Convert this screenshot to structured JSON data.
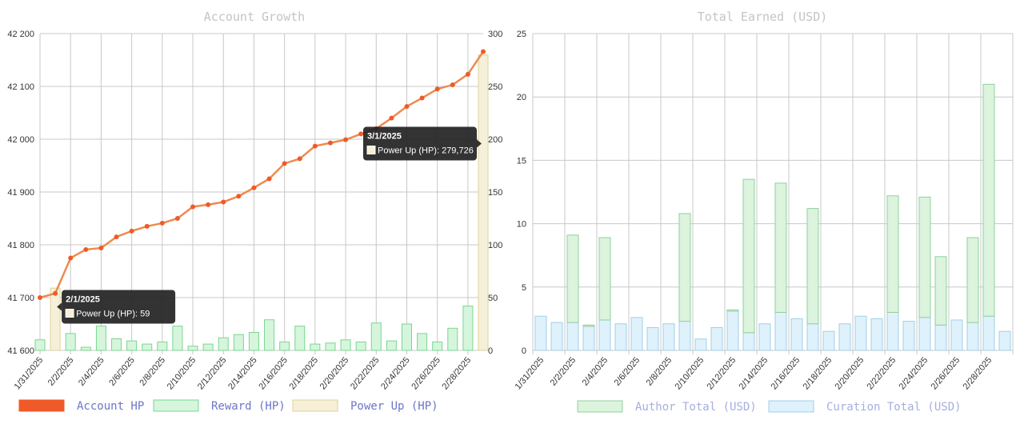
{
  "chart_data": [
    {
      "type": "bar+line",
      "title": "Account Growth",
      "x": [
        "1/31/2025",
        "2/1/2025",
        "2/2/2025",
        "2/3/2025",
        "2/4/2025",
        "2/5/2025",
        "2/6/2025",
        "2/7/2025",
        "2/8/2025",
        "2/9/2025",
        "2/10/2025",
        "2/11/2025",
        "2/12/2025",
        "2/13/2025",
        "2/14/2025",
        "2/15/2025",
        "2/16/2025",
        "2/17/2025",
        "2/18/2025",
        "2/19/2025",
        "2/20/2025",
        "2/21/2025",
        "2/22/2025",
        "2/23/2025",
        "2/24/2025",
        "2/25/2025",
        "2/26/2025",
        "2/27/2025",
        "2/28/2025",
        "3/1/2025"
      ],
      "x_tick_labels": [
        "1/31/2025",
        "2/2/2025",
        "2/4/2025",
        "2/6/2025",
        "2/8/2025",
        "2/10/2025",
        "2/12/2025",
        "2/14/2025",
        "2/16/2025",
        "2/18/2025",
        "2/20/2025",
        "2/22/2025",
        "2/24/2025",
        "2/26/2025",
        "2/28/2025"
      ],
      "y_left": {
        "lim": [
          41600,
          42200
        ],
        "ticks": [
          "41 600",
          "41 700",
          "41 800",
          "41 900",
          "42 000",
          "42 100",
          "42 200"
        ]
      },
      "y_right": {
        "lim": [
          0,
          300
        ],
        "ticks": [
          "0",
          "50",
          "100",
          "150",
          "200",
          "250",
          "300"
        ]
      },
      "series": [
        {
          "name": "Account HP",
          "axis": "left",
          "kind": "line",
          "color": "#f05a28",
          "line_color": "#ee8a50",
          "values": [
            41700,
            41708,
            41775,
            41791,
            41794,
            41815,
            41826,
            41835,
            41841,
            41850,
            41872,
            41876,
            41881,
            41892,
            41908,
            41925,
            41954,
            41963,
            41987,
            41993,
            41999,
            42010,
            42020,
            42040,
            42062,
            42078,
            42095,
            42103,
            42123,
            42166
          ]
        },
        {
          "name": "Reward (HP)",
          "axis": "right",
          "kind": "bar",
          "color": "#d6f5dd",
          "border": "#7ad68f",
          "values": [
            10,
            0,
            16,
            3,
            23,
            11,
            9,
            6,
            8,
            23,
            4,
            6,
            12,
            15,
            17,
            29,
            8,
            23,
            6,
            7,
            10,
            8,
            26,
            9,
            25,
            16,
            8,
            21,
            42,
            5
          ]
        },
        {
          "name": "Power Up (HP)",
          "axis": "right",
          "kind": "bar",
          "color": "#f6f0d8",
          "border": "#ddd19b",
          "values": [
            0,
            59,
            0,
            0,
            0,
            0,
            0,
            0,
            0,
            0,
            0,
            0,
            0,
            0,
            0,
            0,
            0,
            0,
            0,
            0,
            0,
            0,
            0,
            0,
            0,
            0,
            0,
            0,
            0,
            279.726
          ]
        }
      ],
      "tooltips": [
        {
          "title": "2/1/2025",
          "label": "Power Up (HP): 59",
          "index": 1
        },
        {
          "title": "3/1/2025",
          "label": "Power Up (HP): 279,726",
          "index": 29
        }
      ],
      "legend": [
        "Account HP",
        "Reward (HP)",
        "Power Up (HP)"
      ],
      "legend_position": "bottom-left",
      "grid": true
    },
    {
      "type": "stacked-bar",
      "title": "Total Earned (USD)",
      "x": [
        "1/31/2025",
        "2/1/2025",
        "2/2/2025",
        "2/3/2025",
        "2/4/2025",
        "2/5/2025",
        "2/6/2025",
        "2/7/2025",
        "2/8/2025",
        "2/9/2025",
        "2/10/2025",
        "2/11/2025",
        "2/12/2025",
        "2/13/2025",
        "2/14/2025",
        "2/15/2025",
        "2/16/2025",
        "2/17/2025",
        "2/18/2025",
        "2/19/2025",
        "2/20/2025",
        "2/21/2025",
        "2/22/2025",
        "2/23/2025",
        "2/24/2025",
        "2/25/2025",
        "2/26/2025",
        "2/27/2025",
        "2/28/2025",
        "3/1/2025"
      ],
      "x_tick_labels": [
        "1/31/2025",
        "2/2/2025",
        "2/4/2025",
        "2/6/2025",
        "2/8/2025",
        "2/10/2025",
        "2/12/2025",
        "2/14/2025",
        "2/16/2025",
        "2/18/2025",
        "2/20/2025",
        "2/22/2025",
        "2/24/2025",
        "2/26/2025",
        "2/28/2025"
      ],
      "y": {
        "lim": [
          0,
          25
        ],
        "ticks": [
          "0",
          "5",
          "10",
          "15",
          "20",
          "25"
        ]
      },
      "series": [
        {
          "name": "Curation Total (USD)",
          "color": "#dff1fb",
          "border": "#9fd0ea",
          "values": [
            2.7,
            2.2,
            2.2,
            1.9,
            2.4,
            2.1,
            2.6,
            1.8,
            2.1,
            2.3,
            0.9,
            1.8,
            3.1,
            1.4,
            2.1,
            3.0,
            2.5,
            2.1,
            1.5,
            2.1,
            2.7,
            2.5,
            3.0,
            2.3,
            2.6,
            2.0,
            2.4,
            2.2,
            2.7,
            1.5
          ]
        },
        {
          "name": "Author Total (USD)",
          "color": "#dcf3de",
          "border": "#8fd19b",
          "values": [
            0,
            0,
            6.9,
            0.1,
            6.5,
            0,
            0,
            0,
            0,
            8.5,
            0,
            0,
            0.1,
            12.1,
            0,
            10.2,
            0,
            9.1,
            0,
            0,
            0,
            0,
            9.2,
            0,
            9.5,
            5.4,
            0,
            6.7,
            18.3,
            0
          ]
        }
      ],
      "legend": [
        "Author Total (USD)",
        "Curation Total (USD)"
      ],
      "legend_position": "bottom",
      "grid": true
    }
  ]
}
